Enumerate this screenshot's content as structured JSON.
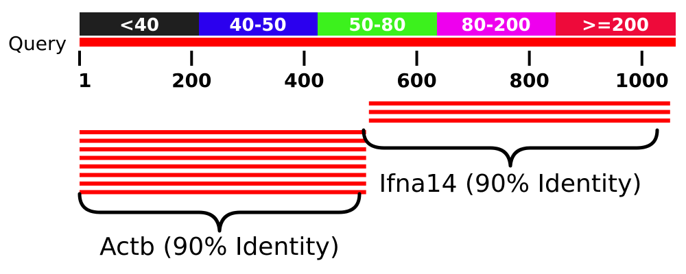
{
  "legend": [
    {
      "label": "<40",
      "color": "#1f1f1f"
    },
    {
      "label": "40-50",
      "color": "#2b00ee"
    },
    {
      "label": "50-80",
      "color": "#3cf11d"
    },
    {
      "label": "80-200",
      "color": "#ee00ee"
    },
    {
      "label": ">=200",
      "color": "#ee0a3a"
    }
  ],
  "query": {
    "label": "Query",
    "color": "#ff0000"
  },
  "axis": {
    "ticks": [
      "1",
      "200",
      "400",
      "600",
      "800",
      "1000"
    ],
    "range": [
      1,
      1060
    ]
  },
  "groups": [
    {
      "name": "Actb (90% Identity)",
      "hit_count": 8,
      "start": 1,
      "end": 510
    },
    {
      "name": "Ifna14 (90% Identity)",
      "hit_count": 3,
      "start": 515,
      "end": 1050
    }
  ],
  "hit_color": "#ff0000"
}
